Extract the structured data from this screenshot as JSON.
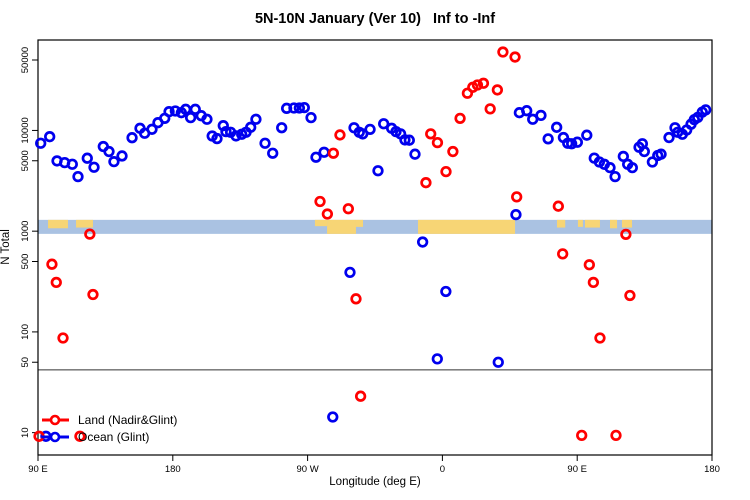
{
  "window": {
    "title": "5N-10N January (Ver 10)   Inf to -Inf"
  },
  "chart_data": {
    "type": "scatter",
    "title": "5N-10N January (Ver 10)   Inf to -Inf",
    "xlabel": "Longitude (deg E)",
    "ylabel": "N Total",
    "x_axis_note": "longitude plotted cumulatively eastward: 90E(90) -> 180(180) -> 90W(270) -> 0(360) -> 90E(450) -> 180(540)",
    "xlim": [
      90,
      540
    ],
    "ylim_log": [
      6,
      79000
    ],
    "grid": false,
    "legend_position": "bottom-left-inside",
    "x_ticks": [
      {
        "label": "90 E",
        "x": 90
      },
      {
        "label": "180",
        "x": 180
      },
      {
        "label": "90 W",
        "x": 270
      },
      {
        "label": "0",
        "x": 360
      },
      {
        "label": "90 E",
        "x": 450
      },
      {
        "label": "180",
        "x": 540
      }
    ],
    "y_ticks": [
      {
        "label": "10",
        "v": 10
      },
      {
        "label": "50",
        "v": 50
      },
      {
        "label": "100",
        "v": 100
      },
      {
        "label": "500",
        "v": 500
      },
      {
        "label": "1000",
        "v": 1000
      },
      {
        "label": "5000",
        "v": 5000
      },
      {
        "label": "10000",
        "v": 10000
      },
      {
        "label": "50000",
        "v": 50000
      }
    ],
    "reference_line_value": 42,
    "map_band": {
      "v_top": 1295,
      "v_bottom": 940,
      "ocean_color": "#aac2e2",
      "land_color": "#f7d575",
      "land_segments": [
        {
          "x0": 96.7,
          "x1": 110.0,
          "h": 0.6
        },
        {
          "x0": 115.4,
          "x1": 126.7,
          "h": 0.55
        },
        {
          "x0": 274.9,
          "x1": 283.0,
          "h": 0.45
        },
        {
          "x0": 283.0,
          "x1": 302.3,
          "h": 1.0
        },
        {
          "x0": 302.3,
          "x1": 307.0,
          "h": 0.5
        },
        {
          "x0": 343.7,
          "x1": 408.5,
          "h": 1.0
        },
        {
          "x0": 436.5,
          "x1": 442.0,
          "h": 0.55
        },
        {
          "x0": 450.5,
          "x1": 453.8,
          "h": 0.5
        },
        {
          "x0": 455.2,
          "x1": 465.2,
          "h": 0.55
        },
        {
          "x0": 471.9,
          "x1": 476.6,
          "h": 0.6
        },
        {
          "x0": 479.9,
          "x1": 486.6,
          "h": 0.55
        }
      ]
    },
    "series": [
      {
        "name": "Ocean (Glint)",
        "color": "#0000ee",
        "points": [
          [
            91.8,
            7460
          ],
          [
            95.3,
            9.2
          ],
          [
            97.8,
            8670
          ],
          [
            102.7,
            4980
          ],
          [
            107.8,
            4790
          ],
          [
            112.9,
            4615
          ],
          [
            116.7,
            3480
          ],
          [
            122.9,
            5300
          ],
          [
            127.4,
            4310
          ],
          [
            133.6,
            6920
          ],
          [
            137.4,
            6170
          ],
          [
            140.7,
            4900
          ],
          [
            146.1,
            5580
          ],
          [
            152.8,
            8470
          ],
          [
            158.1,
            10500
          ],
          [
            161.2,
            9370
          ],
          [
            166.1,
            10260
          ],
          [
            170.1,
            11940
          ],
          [
            174.6,
            13180
          ],
          [
            177.5,
            15350
          ],
          [
            181.7,
            15600
          ],
          [
            185.7,
            15000
          ],
          [
            188.6,
            16200
          ],
          [
            191.9,
            13400
          ],
          [
            195.0,
            16200
          ],
          [
            199.0,
            14000
          ],
          [
            202.8,
            12900
          ],
          [
            206.3,
            8800
          ],
          [
            209.5,
            8300
          ],
          [
            213.7,
            11150
          ],
          [
            215.5,
            9730
          ],
          [
            218.6,
            9600
          ],
          [
            222.2,
            8820
          ],
          [
            226.0,
            9160
          ],
          [
            228.9,
            9600
          ],
          [
            232.0,
            10740
          ],
          [
            235.5,
            12900
          ],
          [
            241.6,
            7460
          ],
          [
            246.7,
            5940
          ],
          [
            252.7,
            10640
          ],
          [
            256.0,
            16570
          ],
          [
            260.9,
            16700
          ],
          [
            264.5,
            16700
          ],
          [
            267.8,
            16850
          ],
          [
            272.3,
            13400
          ],
          [
            275.6,
            5420
          ],
          [
            281.0,
            6070
          ],
          [
            286.8,
            14.3
          ],
          [
            298.3,
            390
          ],
          [
            301.0,
            10630
          ],
          [
            304.5,
            9600
          ],
          [
            306.8,
            9230
          ],
          [
            311.7,
            10250
          ],
          [
            317.0,
            3980
          ],
          [
            320.8,
            11650
          ],
          [
            326.1,
            10500
          ],
          [
            329.0,
            9730
          ],
          [
            332.1,
            9250
          ],
          [
            335.0,
            8050
          ],
          [
            337.9,
            8000
          ],
          [
            341.7,
            5810
          ],
          [
            346.8,
            780
          ],
          [
            356.6,
            54
          ],
          [
            362.3,
            252
          ],
          [
            397.3,
            50
          ],
          [
            409.1,
            1460
          ],
          [
            411.4,
            15000
          ],
          [
            416.3,
            15700
          ],
          [
            420.3,
            12900
          ],
          [
            425.8,
            14100
          ],
          [
            430.6,
            8250
          ],
          [
            436.3,
            10740
          ],
          [
            440.8,
            8500
          ],
          [
            443.7,
            7460
          ],
          [
            446.3,
            7380
          ],
          [
            450.1,
            7640
          ],
          [
            456.4,
            8970
          ],
          [
            461.4,
            5310
          ],
          [
            464.8,
            4860
          ],
          [
            468.1,
            4610
          ],
          [
            471.9,
            4270
          ],
          [
            475.3,
            3480
          ],
          [
            480.8,
            5520
          ],
          [
            483.7,
            4610
          ],
          [
            486.8,
            4270
          ],
          [
            491.3,
            6810
          ],
          [
            493.5,
            7380
          ],
          [
            494.8,
            6170
          ],
          [
            500.2,
            4860
          ],
          [
            503.8,
            5640
          ],
          [
            506.0,
            5810
          ],
          [
            511.3,
            8500
          ],
          [
            515.3,
            10630
          ],
          [
            517.1,
            9600
          ],
          [
            520.2,
            9160
          ],
          [
            523.1,
            10100
          ],
          [
            526.0,
            11530
          ],
          [
            528.2,
            12800
          ],
          [
            530.5,
            13480
          ],
          [
            533.5,
            15200
          ],
          [
            535.8,
            16000
          ]
        ]
      },
      {
        "name": "Land (Nadir&Glint)",
        "color": "#ff0000",
        "points": [
          [
            90.7,
            9.2
          ],
          [
            99.3,
            470
          ],
          [
            102.2,
            310
          ],
          [
            106.7,
            87
          ],
          [
            118.0,
            9.2
          ],
          [
            124.6,
            935
          ],
          [
            126.7,
            235
          ],
          [
            278.3,
            1970
          ],
          [
            283.2,
            1480
          ],
          [
            287.2,
            5940
          ],
          [
            291.6,
            9020
          ],
          [
            297.2,
            1670
          ],
          [
            302.3,
            213
          ],
          [
            305.4,
            23
          ],
          [
            349.0,
            3030
          ],
          [
            352.2,
            9250
          ],
          [
            356.7,
            7570
          ],
          [
            362.4,
            3900
          ],
          [
            367.0,
            6170
          ],
          [
            371.8,
            13180
          ],
          [
            376.7,
            23400
          ],
          [
            380.3,
            26800
          ],
          [
            383.4,
            28250
          ],
          [
            387.4,
            29380
          ],
          [
            391.9,
            16370
          ],
          [
            396.7,
            25240
          ],
          [
            400.4,
            60000
          ],
          [
            408.5,
            53500
          ],
          [
            409.6,
            2190
          ],
          [
            437.4,
            1770
          ],
          [
            440.3,
            595
          ],
          [
            453.0,
            9.4
          ],
          [
            458.1,
            464
          ],
          [
            460.8,
            310
          ],
          [
            465.2,
            87
          ],
          [
            475.9,
            9.4
          ],
          [
            482.5,
            930
          ],
          [
            485.2,
            230
          ]
        ]
      }
    ]
  },
  "legend": {
    "items": [
      {
        "label": "Land (Nadir&Glint)",
        "color": "#ff0000"
      },
      {
        "label": "Ocean (Glint)",
        "color": "#0000ee"
      }
    ]
  }
}
